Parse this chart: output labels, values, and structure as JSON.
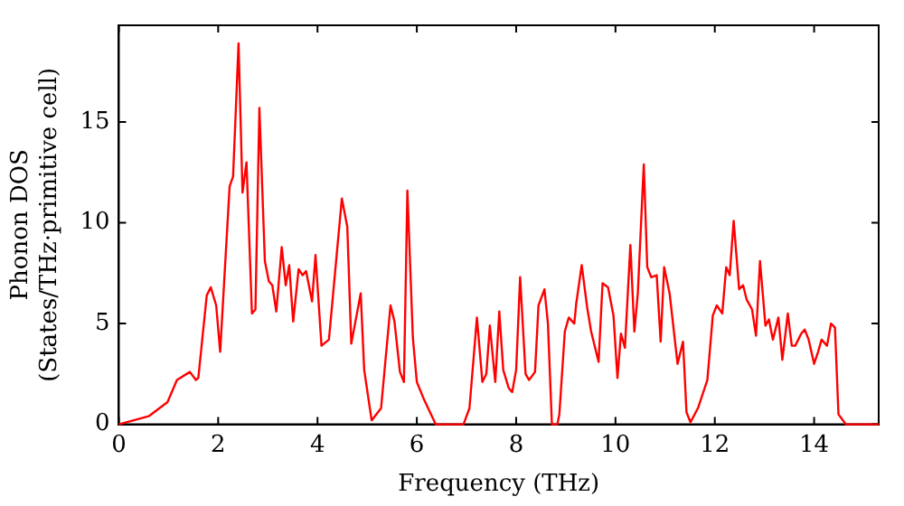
{
  "chart_data": {
    "type": "line",
    "xlabel": "Frequency (THz)",
    "ylabel": "Phonon DOS\n(States/THz·primitive cell)",
    "xlim": [
      0,
      15.3
    ],
    "ylim": [
      0,
      19.8
    ],
    "xticks": [
      0,
      2,
      4,
      6,
      8,
      10,
      12,
      14
    ],
    "yticks": [
      0,
      5,
      10,
      15
    ],
    "grid": false,
    "legend": false,
    "marker": "none",
    "line_style": "solid",
    "series": [
      {
        "color": "#ff0000",
        "x": [
          0,
          0.6,
          0.98,
          1.17,
          1.43,
          1.55,
          1.6,
          1.77,
          1.85,
          1.96,
          2.04,
          2.23,
          2.3,
          2.41,
          2.49,
          2.57,
          2.68,
          2.75,
          2.83,
          2.94,
          3.02,
          3.09,
          3.17,
          3.28,
          3.36,
          3.43,
          3.51,
          3.62,
          3.7,
          3.77,
          3.89,
          3.96,
          4.08,
          4.23,
          4.49,
          4.6,
          4.68,
          4.87,
          4.94,
          5.09,
          5.28,
          5.47,
          5.55,
          5.66,
          5.74,
          5.81,
          5.92,
          6.0,
          6.15,
          6.38,
          6.94,
          7.06,
          7.21,
          7.32,
          7.4,
          7.47,
          7.58,
          7.66,
          7.74,
          7.85,
          7.92,
          8.0,
          8.08,
          8.19,
          8.26,
          8.38,
          8.45,
          8.57,
          8.64,
          8.72,
          8.83,
          8.87,
          8.98,
          9.06,
          9.17,
          9.21,
          9.32,
          9.43,
          9.51,
          9.66,
          9.74,
          9.85,
          9.96,
          10.04,
          10.11,
          10.19,
          10.3,
          10.38,
          10.45,
          10.57,
          10.64,
          10.72,
          10.83,
          10.91,
          10.98,
          11.09,
          11.25,
          11.36,
          11.43,
          11.51,
          11.66,
          11.85,
          11.96,
          12.04,
          12.15,
          12.23,
          12.3,
          12.38,
          12.49,
          12.57,
          12.64,
          12.75,
          12.83,
          12.91,
          13.02,
          13.09,
          13.17,
          13.28,
          13.36,
          13.47,
          13.55,
          13.62,
          13.74,
          13.81,
          13.89,
          14.0,
          14.08,
          14.15,
          14.26,
          14.34,
          14.42,
          14.49,
          14.64,
          15.3
        ],
        "values": [
          0,
          0.4,
          1.1,
          2.2,
          2.6,
          2.2,
          2.3,
          6.4,
          6.8,
          5.9,
          3.6,
          11.8,
          12.3,
          18.9,
          11.5,
          13.0,
          5.5,
          5.7,
          15.7,
          8.1,
          7.1,
          6.9,
          5.6,
          8.8,
          6.9,
          7.9,
          5.1,
          7.7,
          7.4,
          7.6,
          6.1,
          8.4,
          3.9,
          4.2,
          11.2,
          9.8,
          4.0,
          6.5,
          2.7,
          0.2,
          0.8,
          5.9,
          5.1,
          2.6,
          2.1,
          11.6,
          4.3,
          2.1,
          1.2,
          0,
          0,
          0.8,
          5.3,
          2.1,
          2.5,
          4.9,
          2.1,
          5.6,
          2.7,
          1.8,
          1.6,
          2.7,
          7.3,
          2.5,
          2.2,
          2.6,
          5.9,
          6.7,
          5.0,
          0,
          0,
          0.5,
          4.6,
          5.3,
          5.0,
          6.0,
          7.9,
          5.8,
          4.6,
          3.1,
          7.0,
          6.8,
          5.4,
          2.3,
          4.5,
          3.8,
          8.9,
          4.6,
          6.5,
          12.9,
          7.8,
          7.3,
          7.4,
          4.1,
          7.8,
          6.5,
          3.0,
          4.1,
          0.6,
          0.1,
          0.8,
          2.2,
          5.4,
          5.9,
          5.5,
          7.8,
          7.4,
          10.1,
          6.7,
          6.9,
          6.2,
          5.7,
          4.4,
          8.1,
          4.9,
          5.2,
          4.2,
          5.3,
          3.2,
          5.5,
          3.9,
          3.9,
          4.5,
          4.7,
          4.2,
          3.0,
          3.6,
          4.2,
          3.9,
          5.0,
          4.8,
          0.5,
          0,
          0
        ]
      }
    ]
  }
}
